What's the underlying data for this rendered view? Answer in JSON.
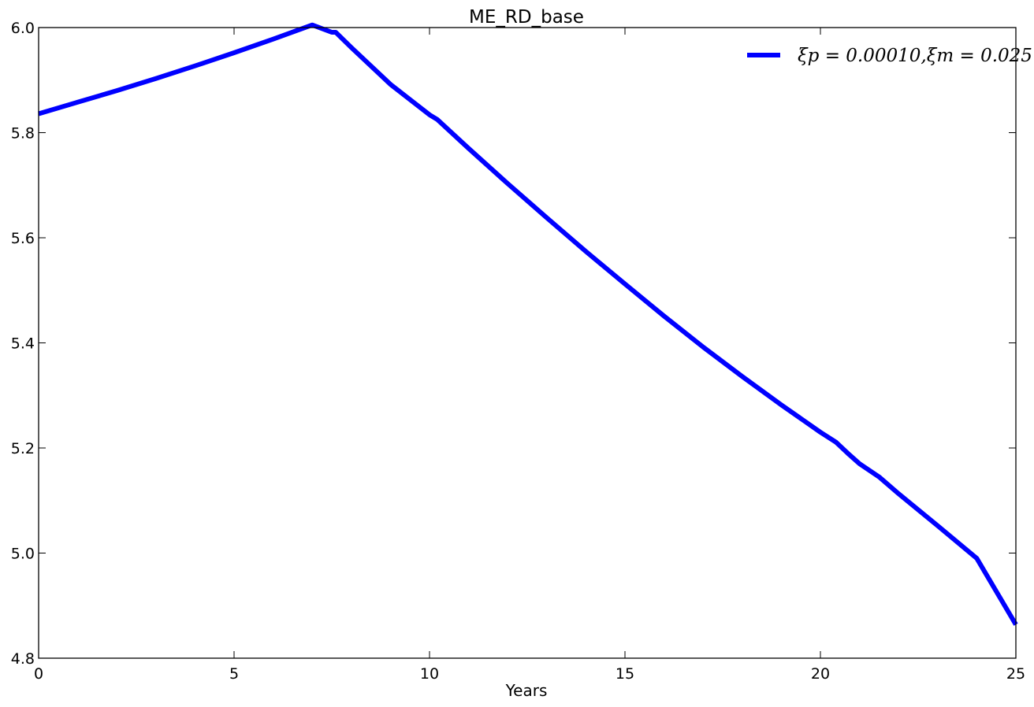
{
  "chart_data": {
    "type": "line",
    "title": "ME_RD_base",
    "xlabel": "Years",
    "ylabel": "",
    "xlim": [
      0,
      25
    ],
    "ylim": [
      4.8,
      6.0
    ],
    "grid": false,
    "legend_position": "top-right",
    "x_ticks": [
      "0",
      "5",
      "10",
      "15",
      "20",
      "25"
    ],
    "y_ticks": [
      "4.8",
      "5.0",
      "5.2",
      "5.4",
      "5.6",
      "5.8",
      "6.0"
    ],
    "series": [
      {
        "name": "ξp = 0.00010,ξm = 0.025",
        "color": "#0000ff",
        "x": [
          0,
          1,
          2,
          3,
          4,
          5,
          6,
          7,
          7.5,
          7.6,
          8,
          9,
          10,
          10.2,
          11,
          12,
          13,
          14,
          15,
          16,
          17,
          18,
          19,
          20,
          20.4,
          20.7,
          21,
          21.5,
          22,
          23,
          24,
          25
        ],
        "y": [
          5.836,
          5.858,
          5.88,
          5.903,
          5.927,
          5.952,
          5.978,
          6.005,
          5.991,
          5.991,
          5.962,
          5.892,
          5.834,
          5.825,
          5.77,
          5.703,
          5.638,
          5.574,
          5.512,
          5.451,
          5.392,
          5.336,
          5.282,
          5.23,
          5.211,
          5.19,
          5.17,
          5.145,
          5.113,
          5.052,
          4.99,
          4.864
        ]
      }
    ]
  }
}
